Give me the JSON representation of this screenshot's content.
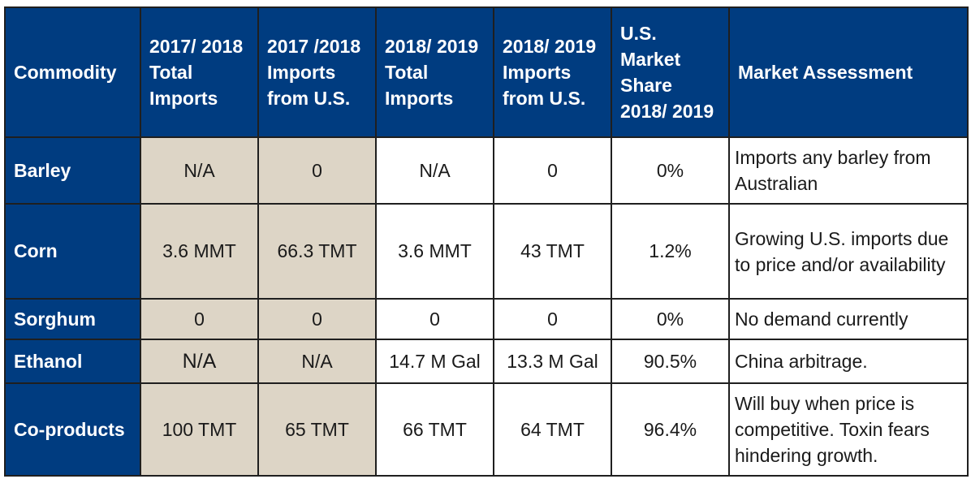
{
  "table": {
    "headers": [
      "Commodity",
      "2017/ 2018 Total Imports",
      "2017 /2018 Imports from U.S.",
      "2018/ 2019 Total Imports",
      "2018/ 2019 Imports from U.S.",
      "U.S. Market Share 2018/ 2019",
      "Market Assessment"
    ],
    "rows": [
      {
        "commodity": "Barley",
        "cells": [
          "N/A",
          "0",
          "N/A",
          "0",
          "0%"
        ],
        "assessment": "Imports any barley from Australian"
      },
      {
        "commodity": "Corn",
        "cells": [
          "3.6 MMT",
          "66.3 TMT",
          "3.6 MMT",
          "43 TMT",
          "1.2%"
        ],
        "assessment": "Growing U.S. imports due to price and/or availability"
      },
      {
        "commodity": "Sorghum",
        "cells": [
          "0",
          "0",
          "0",
          "0",
          "0%"
        ],
        "assessment": "No demand currently"
      },
      {
        "commodity": "Ethanol",
        "cells": [
          "N/A",
          "N/A",
          "14.7 M Gal",
          "13.3 M Gal",
          "90.5%"
        ],
        "assessment": "China arbitrage."
      },
      {
        "commodity": "Co-products",
        "cells": [
          "100 TMT",
          "65 TMT",
          "66 TMT",
          "64 TMT",
          "96.4%"
        ],
        "assessment": "Will buy when price is competitive. Toxin fears hindering growth."
      }
    ]
  },
  "colors": {
    "header_bg": "#003c80",
    "header_text": "#ffffff",
    "highlight_bg": "#ddd5c6",
    "border": "#1f1f1f"
  }
}
